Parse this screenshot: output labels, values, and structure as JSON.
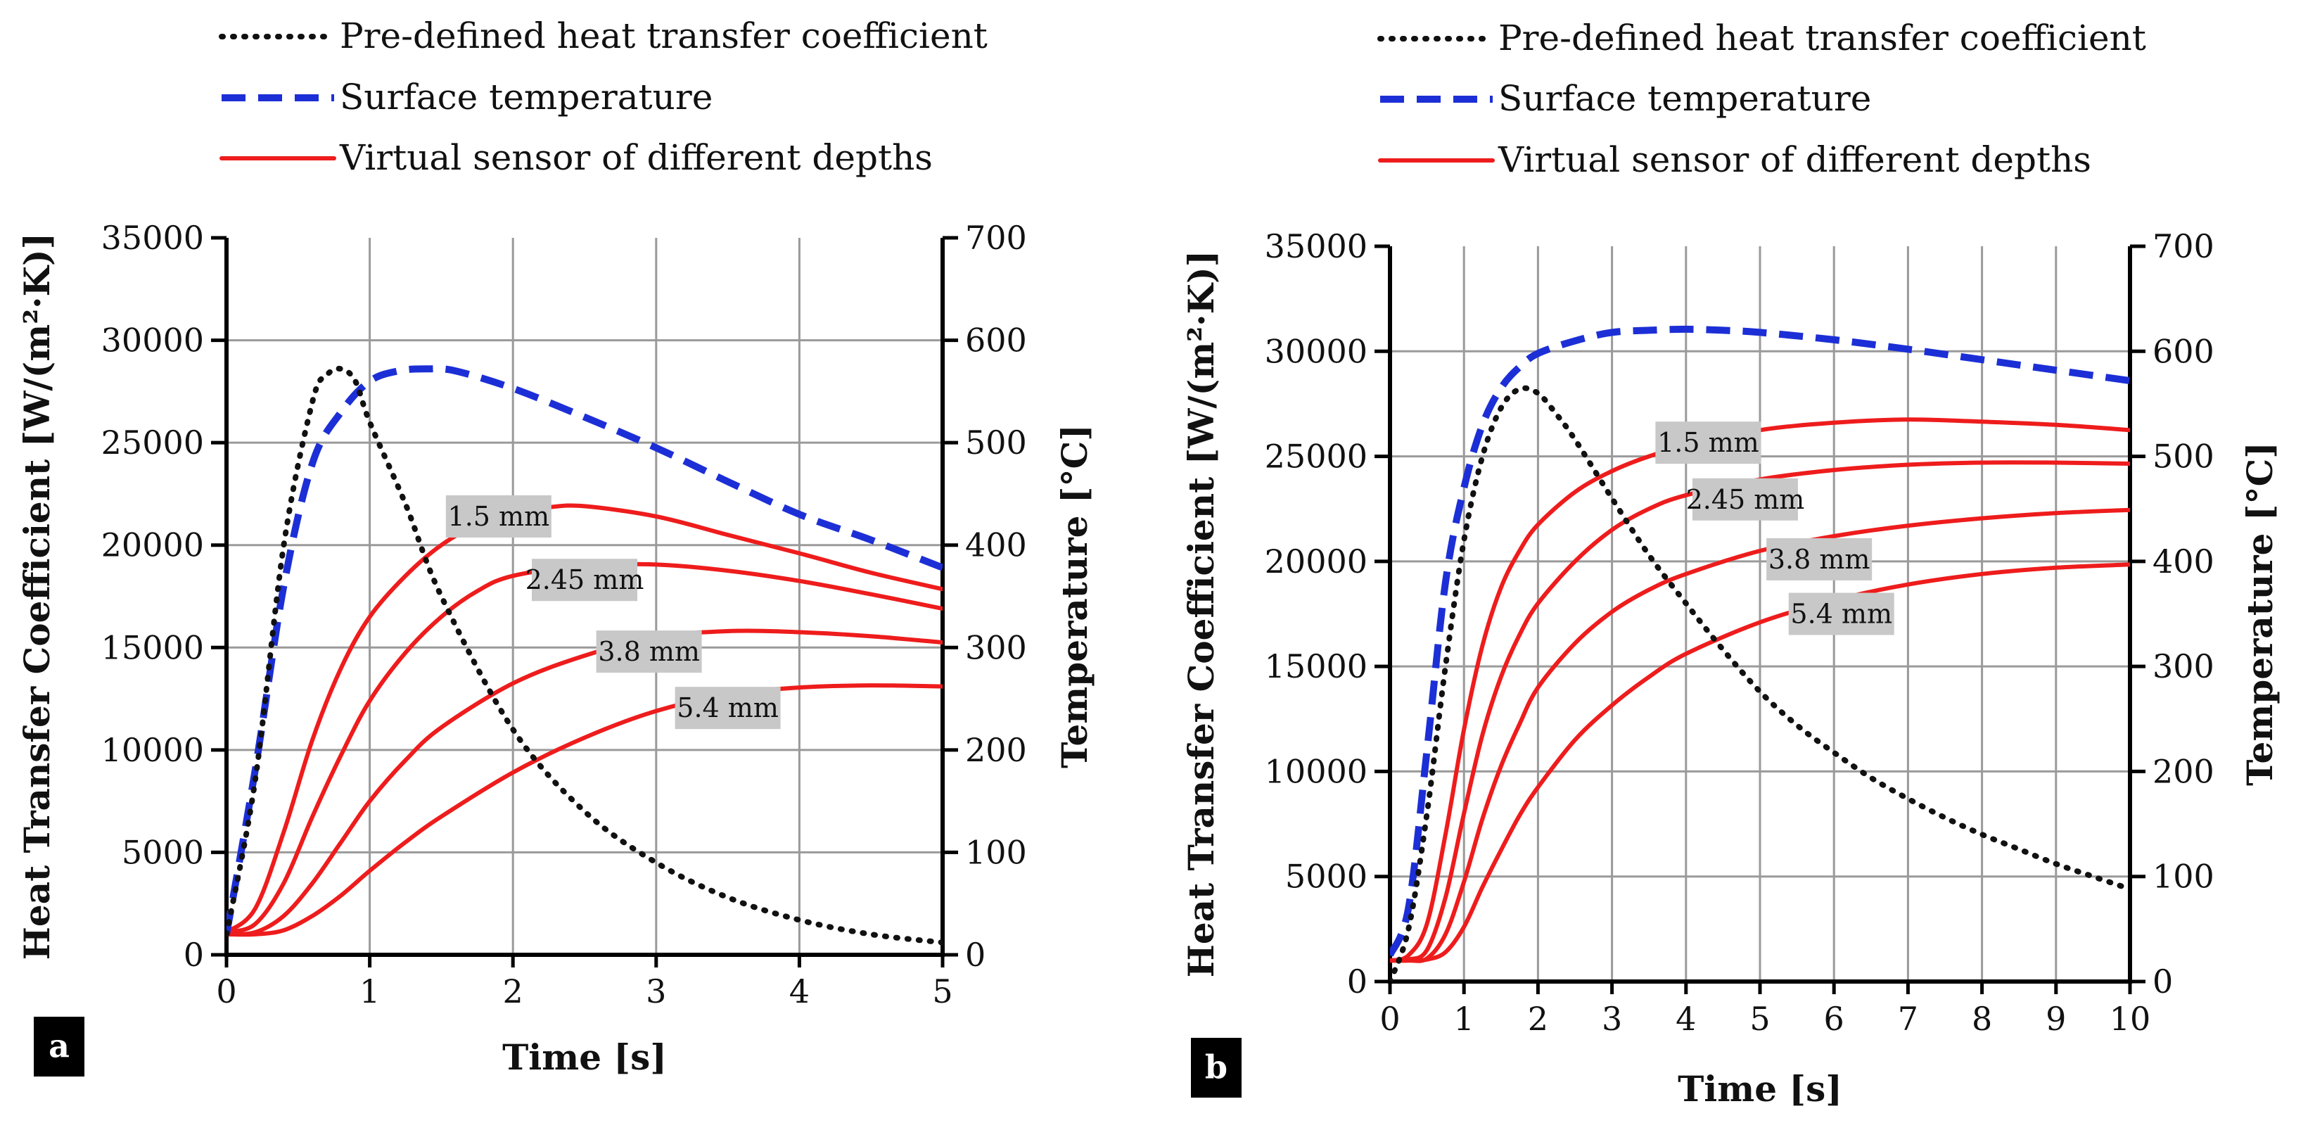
{
  "chart_data": [
    {
      "type": "line",
      "panel_label": "a",
      "legend": {
        "placement": "top",
        "entries": [
          {
            "label": "Pre-defined heat transfer coefficient",
            "style": "dotted",
            "color": "#111111"
          },
          {
            "label": "Surface temperature",
            "style": "dashed",
            "color": "#1c2fd6"
          },
          {
            "label": "Virtual sensor of different depths",
            "style": "solid",
            "color": "#ee1c1c"
          }
        ]
      },
      "xlabel": "Time [s]",
      "ylabel_left": "Heat Transfer Coefficient [W/(m²·K)]",
      "ylabel_right": "Temperature [°C]",
      "xlim": [
        0,
        5
      ],
      "ylim_left": [
        0,
        35000
      ],
      "ylim_right": [
        0,
        700
      ],
      "x_ticks": [
        "0",
        "1",
        "2",
        "3",
        "4",
        "5"
      ],
      "y_ticks_left": [
        "0",
        "5000",
        "10000",
        "15000",
        "20000",
        "25000",
        "30000",
        "35000"
      ],
      "y_ticks_right": [
        "0",
        "100",
        "200",
        "300",
        "400",
        "500",
        "600",
        "700"
      ],
      "grid": true,
      "series": [
        {
          "name": "Pre-defined heat transfer coefficient",
          "axis": "left",
          "color": "#111111",
          "style": "dotted",
          "x": [
            0,
            0.2,
            0.4,
            0.6,
            0.7,
            0.8,
            0.9,
            1.0,
            1.25,
            1.5,
            2.0,
            2.5,
            3.0,
            3.5,
            4.0,
            4.5,
            5.0
          ],
          "y": [
            1000,
            8500,
            20000,
            27000,
            28300,
            28600,
            28000,
            26000,
            22000,
            17500,
            11000,
            7000,
            4500,
            2800,
            1700,
            1000,
            600
          ]
        },
        {
          "name": "Surface temperature",
          "axis": "right",
          "color": "#1c2fd6",
          "style": "dashed",
          "x": [
            0,
            0.2,
            0.4,
            0.6,
            0.8,
            1.0,
            1.2,
            1.4,
            1.6,
            2.0,
            2.5,
            3.0,
            3.5,
            4.0,
            4.5,
            5.0
          ],
          "y": [
            20,
            180,
            360,
            480,
            530,
            560,
            570,
            572,
            570,
            553,
            525,
            495,
            462,
            430,
            405,
            378
          ]
        },
        {
          "name": "1.5 mm",
          "axis": "right",
          "color": "#ee1c1c",
          "style": "solid",
          "x": [
            0,
            0.2,
            0.4,
            0.6,
            0.8,
            1.0,
            1.25,
            1.5,
            1.75,
            2.0,
            2.25,
            2.5,
            3.0,
            3.5,
            4.0,
            4.5,
            5.0
          ],
          "y": [
            22,
            45,
            120,
            210,
            280,
            330,
            370,
            400,
            420,
            432,
            437,
            438,
            428,
            410,
            392,
            373,
            357
          ]
        },
        {
          "name": "2.45 mm",
          "axis": "right",
          "color": "#ee1c1c",
          "style": "solid",
          "x": [
            0,
            0.2,
            0.4,
            0.6,
            0.8,
            1.0,
            1.25,
            1.5,
            1.75,
            2.0,
            2.5,
            3.0,
            3.5,
            4.0,
            4.5,
            5.0
          ],
          "y": [
            22,
            30,
            70,
            135,
            195,
            248,
            295,
            330,
            355,
            370,
            380,
            381,
            375,
            365,
            352,
            338
          ]
        },
        {
          "name": "3.8 mm",
          "axis": "right",
          "color": "#ee1c1c",
          "style": "solid",
          "x": [
            0,
            0.2,
            0.4,
            0.6,
            0.8,
            1.0,
            1.25,
            1.5,
            2.0,
            2.5,
            3.0,
            3.5,
            4.0,
            4.5,
            5.0
          ],
          "y": [
            20,
            22,
            38,
            70,
            110,
            150,
            190,
            222,
            265,
            292,
            310,
            316,
            315,
            311,
            305
          ]
        },
        {
          "name": "5.4 mm",
          "axis": "right",
          "color": "#ee1c1c",
          "style": "solid",
          "x": [
            0,
            0.2,
            0.4,
            0.6,
            0.8,
            1.0,
            1.25,
            1.5,
            2.0,
            2.5,
            3.0,
            3.5,
            4.0,
            4.5,
            5.0
          ],
          "y": [
            20,
            20,
            24,
            38,
            58,
            82,
            110,
            135,
            178,
            212,
            238,
            254,
            261,
            263,
            262
          ]
        }
      ],
      "annotations": [
        {
          "text": "1.5 mm",
          "x": 1.9,
          "y_right": 428
        },
        {
          "text": "2.45 mm",
          "x": 2.5,
          "y_right": 366
        },
        {
          "text": "3.8 mm",
          "x": 2.95,
          "y_right": 296
        },
        {
          "text": "5.4 mm",
          "x": 3.5,
          "y_right": 241
        }
      ]
    },
    {
      "type": "line",
      "panel_label": "b",
      "legend": {
        "placement": "top",
        "entries": [
          {
            "label": "Pre-defined heat transfer coefficient",
            "style": "dotted",
            "color": "#111111"
          },
          {
            "label": "Surface temperature",
            "style": "dashed",
            "color": "#1c2fd6"
          },
          {
            "label": "Virtual sensor of different depths",
            "style": "solid",
            "color": "#ee1c1c"
          }
        ]
      },
      "xlabel": "Time [s]",
      "ylabel_left": "Heat Transfer Coefficient [W/(m²·K)]",
      "ylabel_right": "Temperature [°C]",
      "xlim": [
        0,
        10
      ],
      "ylim_left": [
        0,
        35000
      ],
      "ylim_right": [
        0,
        700
      ],
      "x_ticks": [
        "0",
        "1",
        "2",
        "3",
        "4",
        "5",
        "6",
        "7",
        "8",
        "9",
        "10"
      ],
      "y_ticks_left": [
        "0",
        "5000",
        "10000",
        "15000",
        "20000",
        "25000",
        "30000",
        "35000"
      ],
      "y_ticks_right": [
        "0",
        "100",
        "200",
        "300",
        "400",
        "500",
        "600",
        "700"
      ],
      "grid": true,
      "series": [
        {
          "name": "Pre-defined heat transfer coefficient",
          "axis": "left",
          "color": "#111111",
          "style": "dotted",
          "x": [
            0,
            0.25,
            0.5,
            0.75,
            1.0,
            1.25,
            1.5,
            1.75,
            2.0,
            2.25,
            2.5,
            3.0,
            3.5,
            4.0,
            4.5,
            5.0,
            5.5,
            6.0,
            6.5,
            7.0,
            7.5,
            8.0,
            8.5,
            9.0,
            9.5,
            10.0
          ],
          "y": [
            0,
            2500,
            8000,
            15000,
            21000,
            25000,
            27300,
            28200,
            28000,
            27000,
            25800,
            23000,
            20300,
            18000,
            15800,
            13800,
            12200,
            10900,
            9700,
            8700,
            7800,
            7000,
            6300,
            5600,
            5000,
            4400
          ]
        },
        {
          "name": "Surface temperature",
          "axis": "right",
          "color": "#1c2fd6",
          "style": "dashed",
          "x": [
            0,
            0.25,
            0.5,
            0.75,
            1.0,
            1.25,
            1.5,
            1.75,
            2.0,
            2.5,
            3.0,
            3.5,
            4.0,
            4.5,
            5.0,
            6.0,
            7.0,
            8.0,
            9.0,
            10.0
          ],
          "y": [
            25,
            70,
            220,
            380,
            470,
            530,
            565,
            585,
            598,
            610,
            618,
            620,
            621,
            620,
            618,
            611,
            602,
            592,
            582,
            572
          ]
        },
        {
          "name": "1.5 mm",
          "axis": "right",
          "color": "#ee1c1c",
          "style": "solid",
          "x": [
            0,
            0.25,
            0.5,
            0.75,
            1.0,
            1.25,
            1.5,
            1.75,
            2.0,
            2.5,
            3.0,
            3.5,
            4.0,
            5.0,
            6.0,
            7.0,
            8.0,
            9.0,
            10.0
          ],
          "y": [
            20,
            25,
            55,
            140,
            240,
            320,
            375,
            410,
            435,
            466,
            486,
            500,
            510,
            525,
            532,
            535,
            533,
            530,
            525
          ]
        },
        {
          "name": "2.45 mm",
          "axis": "right",
          "color": "#ee1c1c",
          "style": "solid",
          "x": [
            0,
            0.25,
            0.5,
            0.75,
            1.0,
            1.25,
            1.5,
            1.75,
            2.0,
            2.5,
            3.0,
            3.5,
            4.0,
            5.0,
            6.0,
            7.0,
            8.0,
            9.0,
            10.0
          ],
          "y": [
            20,
            21,
            30,
            80,
            160,
            235,
            290,
            330,
            360,
            400,
            430,
            450,
            463,
            478,
            487,
            492,
            494,
            494,
            493
          ]
        },
        {
          "name": "3.8 mm",
          "axis": "right",
          "color": "#ee1c1c",
          "style": "solid",
          "x": [
            0,
            0.25,
            0.5,
            0.75,
            1.0,
            1.25,
            1.5,
            1.75,
            2.0,
            2.5,
            3.0,
            3.5,
            4.0,
            5.0,
            6.0,
            7.0,
            8.0,
            9.0,
            10.0
          ],
          "y": [
            20,
            20,
            22,
            45,
            95,
            155,
            205,
            245,
            280,
            322,
            352,
            373,
            388,
            410,
            424,
            434,
            441,
            446,
            449
          ]
        },
        {
          "name": "5.4 mm",
          "axis": "right",
          "color": "#ee1c1c",
          "style": "solid",
          "x": [
            0,
            0.25,
            0.5,
            0.75,
            1.0,
            1.25,
            1.5,
            1.75,
            2.0,
            2.5,
            3.0,
            3.5,
            4.0,
            5.0,
            6.0,
            7.0,
            8.0,
            9.0,
            10.0
          ],
          "y": [
            20,
            20,
            21,
            28,
            52,
            90,
            125,
            158,
            185,
            230,
            263,
            290,
            312,
            342,
            363,
            378,
            388,
            394,
            397
          ]
        }
      ],
      "annotations": [
        {
          "text": "1.5 mm",
          "x": 4.3,
          "y_right": 513
        },
        {
          "text": "2.45 mm",
          "x": 4.8,
          "y_right": 459
        },
        {
          "text": "3.8 mm",
          "x": 5.8,
          "y_right": 402
        },
        {
          "text": "5.4 mm",
          "x": 6.1,
          "y_right": 350
        }
      ]
    }
  ]
}
